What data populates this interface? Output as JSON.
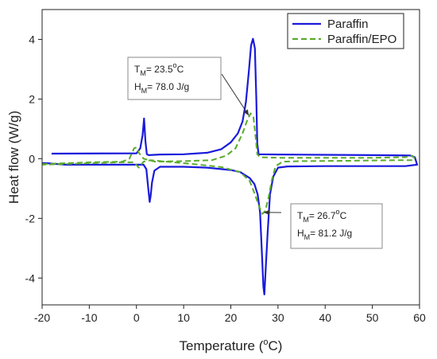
{
  "chart_data": {
    "type": "line",
    "xlabel": "Temperature (",
    "xlabel_sup": "o",
    "xlabel_end": "C)",
    "ylabel": "Heat flow (W/g)",
    "xlim": [
      -20,
      60
    ],
    "ylim": [
      -4.9,
      5
    ],
    "xticks": [
      -20,
      -10,
      0,
      10,
      20,
      30,
      40,
      50,
      60
    ],
    "yticks": [
      -4,
      -2,
      0,
      2,
      4
    ],
    "grid": false,
    "legend_position": "top-right",
    "series": [
      {
        "name": "Paraffin",
        "color": "#1a1adb",
        "style": "solid",
        "segments": [
          [
            [
              -18,
              0.17
            ],
            [
              0,
              0.18
            ],
            [
              0.8,
              0.35
            ],
            [
              1.3,
              0.8
            ],
            [
              1.6,
              1.35
            ],
            [
              1.9,
              0.6
            ],
            [
              2.2,
              0.15
            ],
            [
              2.6,
              0.12
            ],
            [
              5,
              0.14
            ],
            [
              10,
              0.15
            ],
            [
              15,
              0.2
            ],
            [
              18,
              0.32
            ],
            [
              20,
              0.55
            ],
            [
              21.5,
              0.85
            ],
            [
              22.5,
              1.25
            ],
            [
              23.2,
              1.9
            ],
            [
              23.8,
              2.9
            ],
            [
              24.3,
              3.8
            ],
            [
              24.7,
              4.02
            ],
            [
              25.1,
              3.7
            ],
            [
              25.4,
              2.0
            ],
            [
              25.6,
              0.5
            ],
            [
              25.9,
              0.15
            ],
            [
              30,
              0.14
            ],
            [
              40,
              0.13
            ],
            [
              50,
              0.12
            ],
            [
              58,
              0.11
            ],
            [
              59,
              0.05
            ],
            [
              59.5,
              -0.2
            ],
            [
              57,
              -0.25
            ],
            [
              50,
              -0.25
            ],
            [
              40,
              -0.25
            ],
            [
              32,
              -0.26
            ],
            [
              30,
              -0.3
            ],
            [
              29,
              -0.6
            ],
            [
              28.3,
              -1.2
            ],
            [
              27.8,
              -2.5
            ],
            [
              27.4,
              -3.7
            ],
            [
              27.1,
              -4.55
            ],
            [
              26.9,
              -4.3
            ],
            [
              26.6,
              -3.2
            ],
            [
              26.2,
              -1.8
            ],
            [
              25.7,
              -1.2
            ],
            [
              25,
              -0.85
            ],
            [
              24,
              -0.65
            ],
            [
              22,
              -0.45
            ],
            [
              20,
              -0.38
            ],
            [
              15,
              -0.3
            ],
            [
              10,
              -0.27
            ],
            [
              5,
              -0.27
            ],
            [
              3.8,
              -0.4
            ],
            [
              3.3,
              -0.8
            ],
            [
              3,
              -1.25
            ],
            [
              2.8,
              -1.45
            ],
            [
              2.5,
              -1.0
            ],
            [
              2.1,
              -0.35
            ],
            [
              1.5,
              -0.2
            ],
            [
              0,
              -0.2
            ],
            [
              -5,
              -0.2
            ],
            [
              -10,
              -0.2
            ],
            [
              -15,
              -0.2
            ],
            [
              -19,
              -0.15
            ],
            [
              -20,
              -0.15
            ]
          ]
        ]
      },
      {
        "name": "Paraffin/EPO",
        "color": "#5aab2b",
        "style": "dashed",
        "segments": [
          [
            [
              -20,
              -0.18
            ],
            [
              -10,
              -0.12
            ],
            [
              -3,
              -0.1
            ],
            [
              -1.5,
              0.0
            ],
            [
              -0.5,
              0.35
            ],
            [
              0,
              0.38
            ],
            [
              0.5,
              0.2
            ],
            [
              1.5,
              0.0
            ],
            [
              4,
              -0.1
            ],
            [
              10,
              -0.08
            ],
            [
              16,
              -0.05
            ],
            [
              19,
              0.1
            ],
            [
              21,
              0.35
            ],
            [
              22.5,
              0.85
            ],
            [
              23.5,
              1.3
            ],
            [
              24.2,
              1.52
            ],
            [
              24.8,
              1.4
            ],
            [
              25.2,
              0.8
            ],
            [
              25.6,
              0.15
            ],
            [
              26.2,
              0.05
            ],
            [
              30,
              0.03
            ],
            [
              40,
              0.03
            ],
            [
              50,
              0.03
            ],
            [
              57,
              0.05
            ],
            [
              58.5,
              0.1
            ],
            [
              59,
              0.0
            ],
            [
              58.5,
              -0.05
            ],
            [
              55,
              -0.05
            ],
            [
              45,
              -0.07
            ],
            [
              35,
              -0.08
            ],
            [
              31,
              -0.1
            ],
            [
              29.5,
              -0.25
            ],
            [
              28.7,
              -0.7
            ],
            [
              28,
              -1.3
            ],
            [
              27.3,
              -1.75
            ],
            [
              26.7,
              -1.85
            ],
            [
              26,
              -1.6
            ],
            [
              25,
              -1.15
            ],
            [
              24,
              -0.75
            ],
            [
              22,
              -0.45
            ],
            [
              18,
              -0.28
            ],
            [
              12,
              -0.18
            ],
            [
              5,
              -0.08
            ],
            [
              3,
              -0.05
            ],
            [
              1.5,
              -0.1
            ],
            [
              0.5,
              -0.3
            ],
            [
              -0.5,
              -0.12
            ],
            [
              -3,
              -0.12
            ],
            [
              -10,
              -0.15
            ],
            [
              -20,
              -0.2
            ]
          ]
        ]
      }
    ],
    "annotations": [
      {
        "lines": [
          {
            "main": "T",
            "sub": "M",
            "rest": "= 23.5",
            "sup": "o",
            "end": "C"
          },
          {
            "main": "H",
            "sub": "M",
            "rest": "= 78.0 J/g",
            "sup": "",
            "end": ""
          }
        ],
        "arrow_to": [
          23.8,
          1.45
        ]
      },
      {
        "lines": [
          {
            "main": "T",
            "sub": "M",
            "rest": "= 26.7",
            "sup": "o",
            "end": "C"
          },
          {
            "main": "H",
            "sub": "M",
            "rest": "= 81.2 J/g",
            "sup": "",
            "end": ""
          }
        ],
        "arrow_to": [
          27.0,
          -1.8
        ]
      }
    ]
  }
}
